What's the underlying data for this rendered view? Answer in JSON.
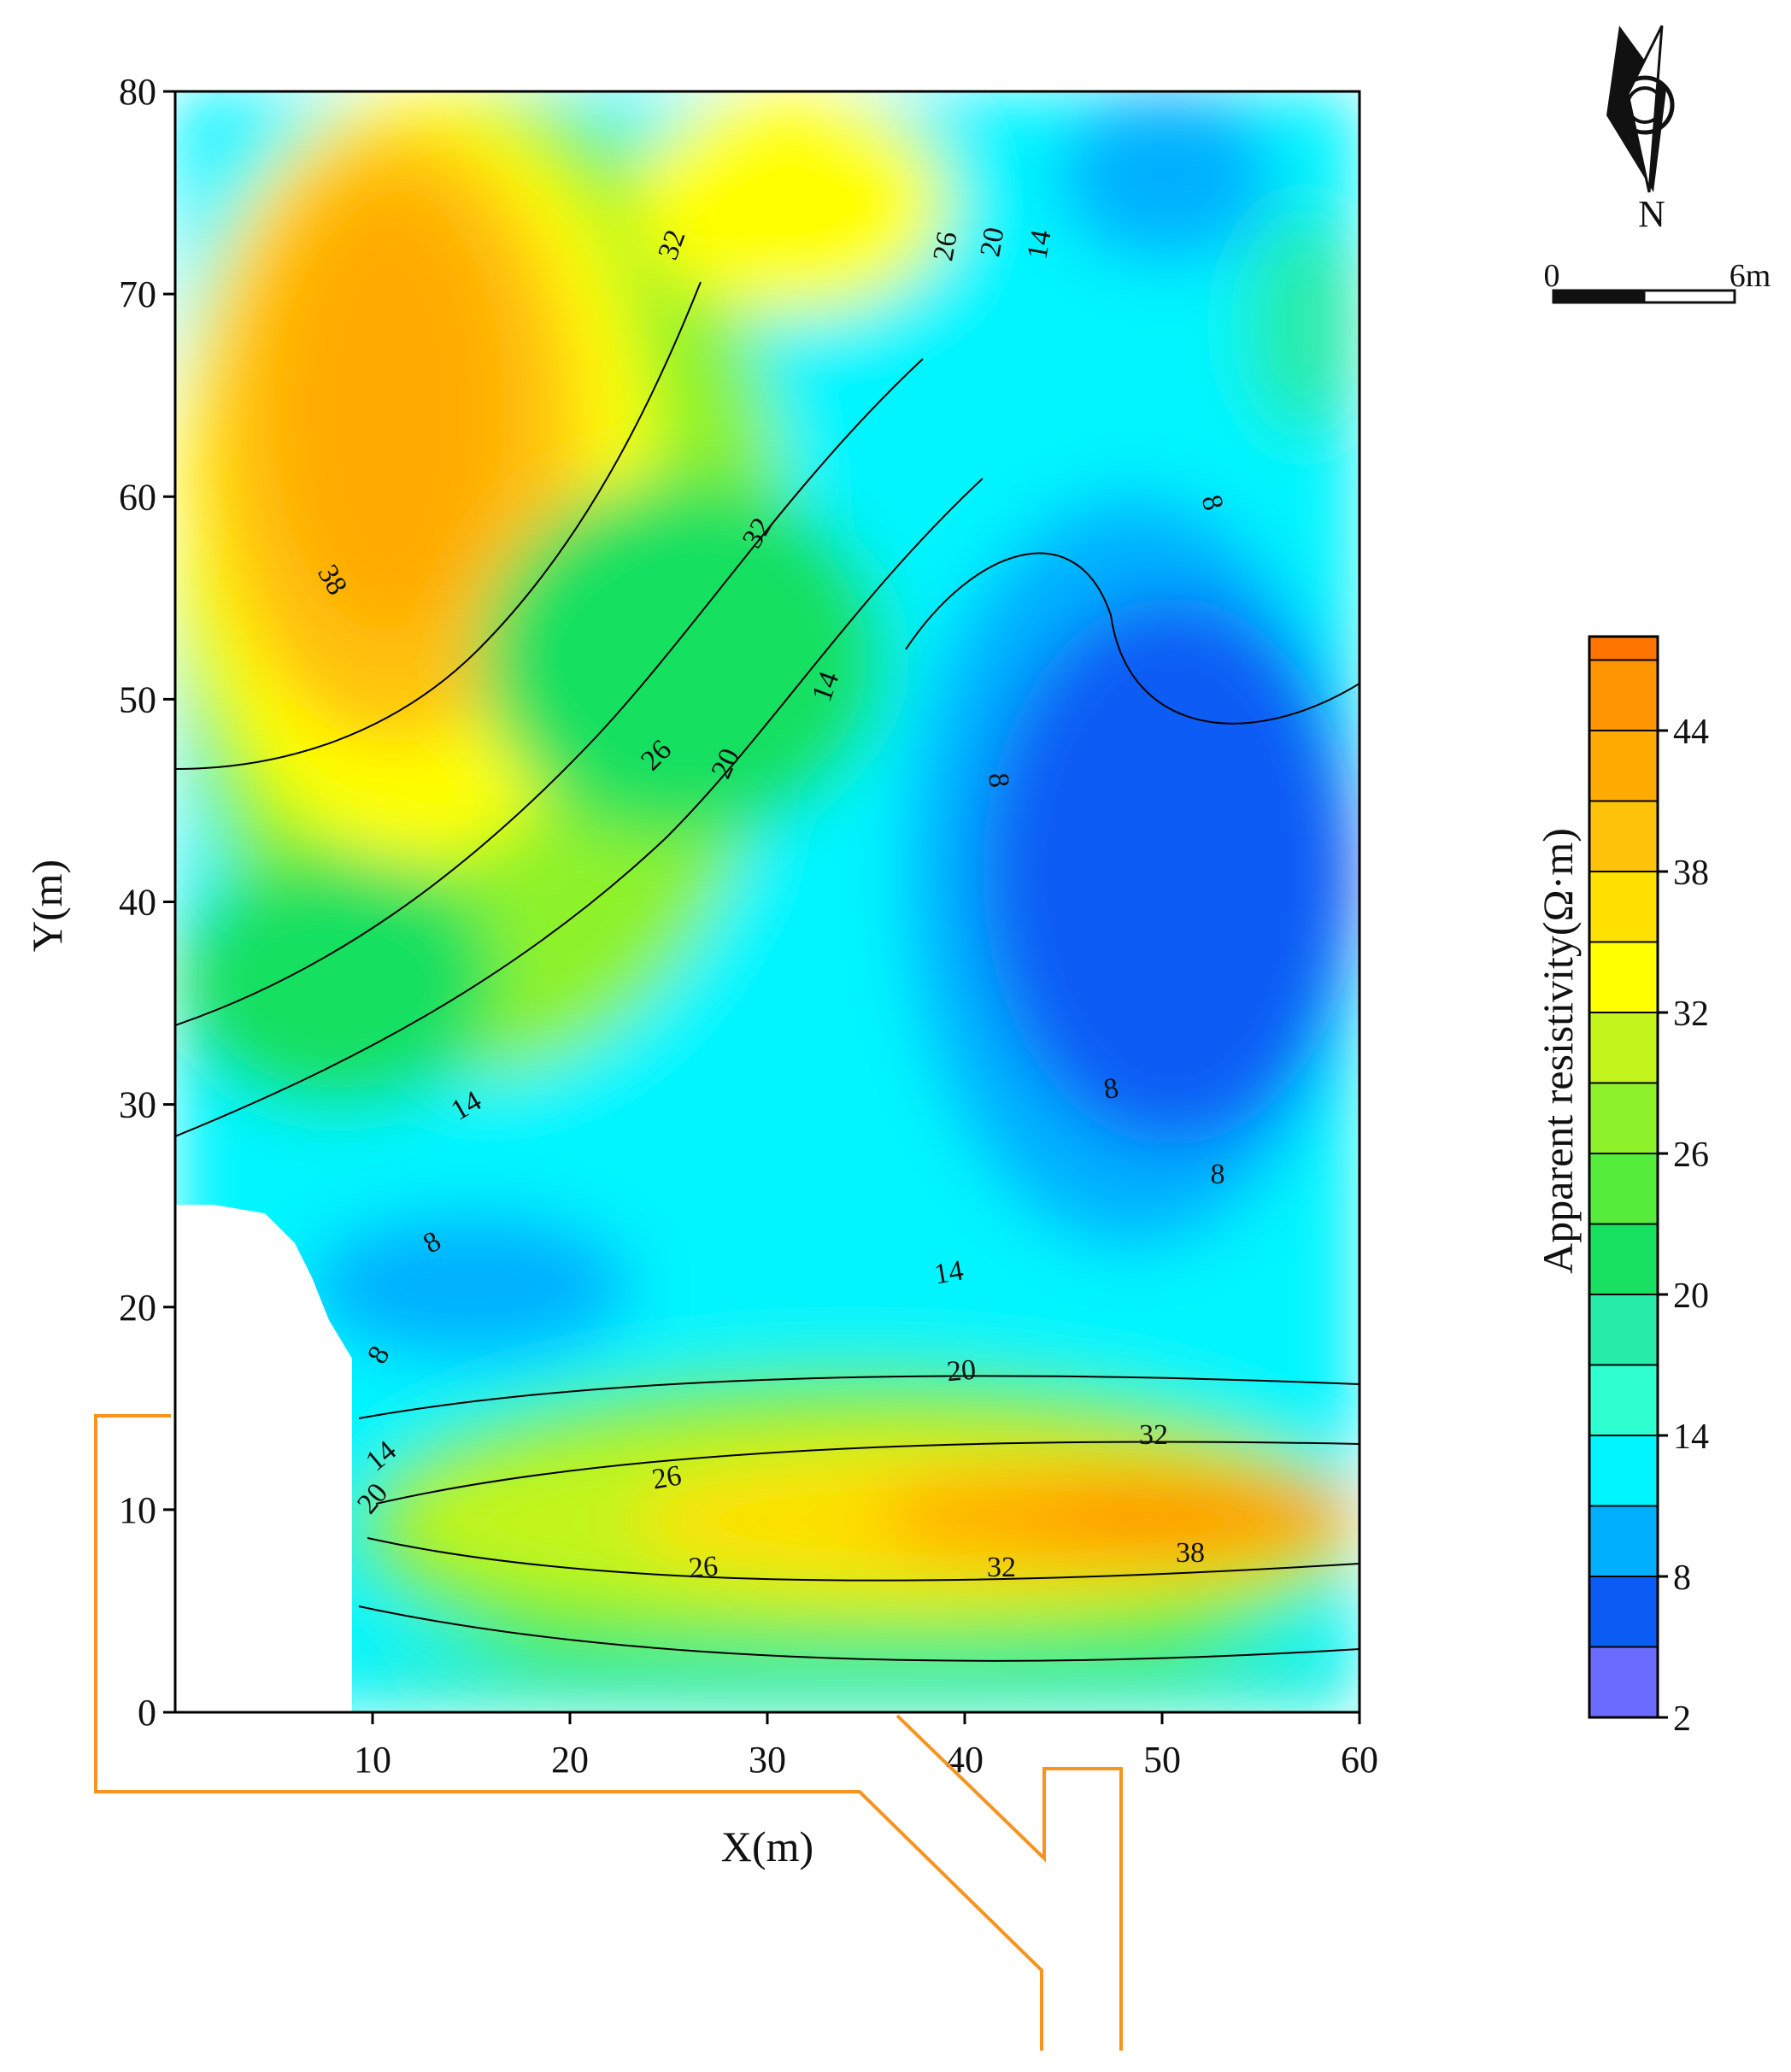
{
  "chart_data": {
    "type": "heatmap",
    "subtype": "filled-contour",
    "xlabel": "X(m)",
    "ylabel": "Y(m)",
    "xlim": [
      0,
      60
    ],
    "ylim": [
      0,
      80
    ],
    "x_ticks": [
      "10",
      "20",
      "30",
      "40",
      "50",
      "60"
    ],
    "y_ticks": [
      "0",
      "10",
      "20",
      "30",
      "40",
      "50",
      "60",
      "70",
      "80"
    ],
    "colorbar": {
      "label": "Apparent resistivity(Ω·m)",
      "min": 2,
      "max": 48,
      "ticks": [
        "2",
        "8",
        "14",
        "20",
        "26",
        "32",
        "38",
        "44"
      ],
      "levels": [
        2,
        5,
        8,
        11,
        14,
        17,
        20,
        23,
        26,
        29,
        32,
        35,
        38,
        41,
        44,
        47
      ],
      "colors": [
        "#6b6bff",
        "#0a5cf5",
        "#00b0ff",
        "#00f5ff",
        "#2fffd0",
        "#27eba8",
        "#18e060",
        "#55ec3c",
        "#8ef22a",
        "#c3f51d",
        "#ffff00",
        "#ffe000",
        "#ffc20a",
        "#ffaa00",
        "#ff9500",
        "#ff7300"
      ]
    },
    "contour_labels": [
      "32",
      "26",
      "20",
      "14",
      "38",
      "32",
      "14",
      "8",
      "8",
      "26",
      "20",
      "8",
      "14",
      "8",
      "8",
      "8",
      "14",
      "20",
      "14",
      "20",
      "26",
      "32",
      "26",
      "32",
      "38"
    ],
    "anomalies": [
      {
        "x": 16,
        "y": 64,
        "value": 38
      },
      {
        "x": 55,
        "y": 10,
        "value": 44
      },
      {
        "x": 55,
        "y": 40,
        "value": 5
      },
      {
        "x": 17,
        "y": 22,
        "value": 8
      }
    ]
  },
  "north_arrow": {
    "label": "N"
  },
  "scale_bar": {
    "start_label": "0",
    "end_label": "6m"
  },
  "colors": {
    "outline": "#f7931e",
    "contour": "#000000"
  }
}
